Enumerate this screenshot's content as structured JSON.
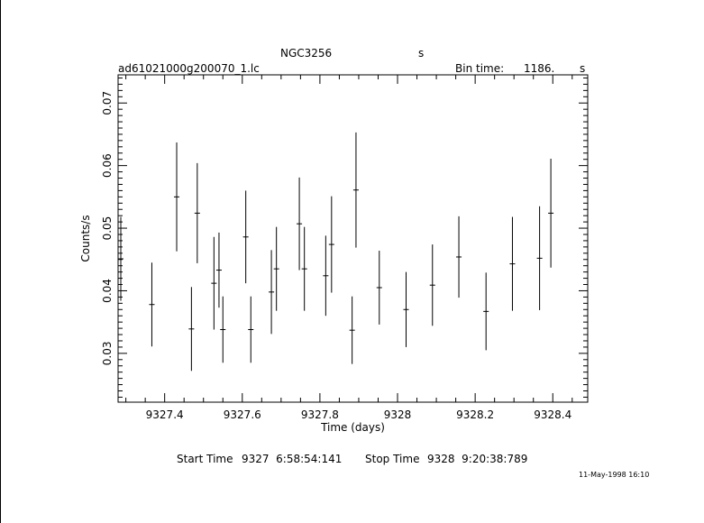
{
  "header": {
    "object": "NGC3256",
    "object_unit": "s",
    "filename": "ad61021000g200070_1.lc",
    "bin_label": "Bin time:",
    "bin_value": "1186.",
    "bin_unit": "s"
  },
  "footer": {
    "start_label": "Start Time",
    "start_value": "9327  6:58:54:141",
    "stop_label": "Stop Time",
    "stop_value": "9328  9:20:38:789",
    "stamp": "11-May-1998 16:10"
  },
  "chart_data": {
    "type": "scatter",
    "xlabel": "Time (days)",
    "ylabel": "Counts/s",
    "xlim": [
      9327.28,
      9328.49
    ],
    "ylim": [
      0.0222,
      0.0745
    ],
    "x_ticks": [
      9327.4,
      9327.6,
      9327.8,
      9328,
      9328.2,
      9328.4
    ],
    "x_tick_labels": [
      "9327.4",
      "9327.6",
      "9327.8",
      "9328",
      "9328.2",
      "9328.4"
    ],
    "y_ticks": [
      0.03,
      0.04,
      0.05,
      0.06,
      0.07
    ],
    "y_tick_labels": [
      "0.03",
      "0.04",
      "0.05",
      "0.06",
      "0.07"
    ],
    "grid": false,
    "points": [
      {
        "x": 9327.287,
        "y": 0.0451,
        "xerr": 0.007,
        "yerr": 0.0067
      },
      {
        "x": 9327.367,
        "y": 0.0378,
        "xerr": 0.007,
        "yerr": 0.0067
      },
      {
        "x": 9327.431,
        "y": 0.055,
        "xerr": 0.007,
        "yerr": 0.0087
      },
      {
        "x": 9327.469,
        "y": 0.0339,
        "xerr": 0.007,
        "yerr": 0.0067
      },
      {
        "x": 9327.484,
        "y": 0.0524,
        "xerr": 0.007,
        "yerr": 0.008
      },
      {
        "x": 9327.527,
        "y": 0.0412,
        "xerr": 0.007,
        "yerr": 0.0074
      },
      {
        "x": 9327.54,
        "y": 0.0433,
        "xerr": 0.007,
        "yerr": 0.006
      },
      {
        "x": 9327.55,
        "y": 0.0338,
        "xerr": 0.007,
        "yerr": 0.0053
      },
      {
        "x": 9327.609,
        "y": 0.0486,
        "xerr": 0.007,
        "yerr": 0.0074
      },
      {
        "x": 9327.622,
        "y": 0.0338,
        "xerr": 0.007,
        "yerr": 0.0053
      },
      {
        "x": 9327.675,
        "y": 0.0398,
        "xerr": 0.007,
        "yerr": 0.0067
      },
      {
        "x": 9327.688,
        "y": 0.0435,
        "xerr": 0.007,
        "yerr": 0.0067
      },
      {
        "x": 9327.747,
        "y": 0.0507,
        "xerr": 0.007,
        "yerr": 0.0074
      },
      {
        "x": 9327.76,
        "y": 0.0435,
        "xerr": 0.007,
        "yerr": 0.0067
      },
      {
        "x": 9327.815,
        "y": 0.0424,
        "xerr": 0.007,
        "yerr": 0.0064
      },
      {
        "x": 9327.83,
        "y": 0.0474,
        "xerr": 0.007,
        "yerr": 0.0077
      },
      {
        "x": 9327.883,
        "y": 0.0337,
        "xerr": 0.007,
        "yerr": 0.0054
      },
      {
        "x": 9327.893,
        "y": 0.0561,
        "xerr": 0.007,
        "yerr": 0.0092
      },
      {
        "x": 9327.953,
        "y": 0.0405,
        "xerr": 0.007,
        "yerr": 0.0059
      },
      {
        "x": 9328.022,
        "y": 0.037,
        "xerr": 0.007,
        "yerr": 0.006
      },
      {
        "x": 9328.09,
        "y": 0.0409,
        "xerr": 0.007,
        "yerr": 0.0065
      },
      {
        "x": 9328.158,
        "y": 0.0454,
        "xerr": 0.007,
        "yerr": 0.0065
      },
      {
        "x": 9328.228,
        "y": 0.0367,
        "xerr": 0.007,
        "yerr": 0.0062
      },
      {
        "x": 9328.296,
        "y": 0.0443,
        "xerr": 0.007,
        "yerr": 0.0075
      },
      {
        "x": 9328.366,
        "y": 0.0452,
        "xerr": 0.007,
        "yerr": 0.0083
      },
      {
        "x": 9328.395,
        "y": 0.0524,
        "xerr": 0.007,
        "yerr": 0.0087
      }
    ]
  }
}
